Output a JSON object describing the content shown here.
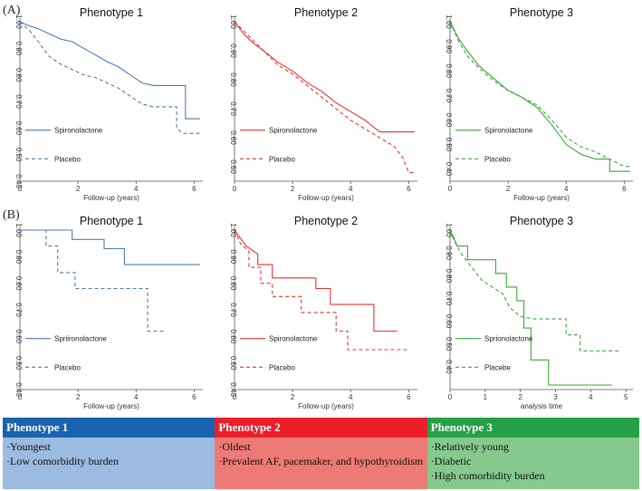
{
  "panels": {
    "a": "(A)",
    "b": "(B)"
  },
  "colors": {
    "blue": "#4e79b4",
    "red": "#e8322c",
    "green": "#3aa635"
  },
  "chart_data": [
    {
      "type": "line",
      "row": "A",
      "title": "Phenotype 1",
      "color": "blue",
      "xlabel": "Follow-up (years)",
      "xlim": [
        0,
        6.3
      ],
      "xticks": [
        0,
        2,
        4,
        6
      ],
      "ylim": [
        0.4,
        1.0
      ],
      "yticks": [
        "0.40",
        "0.50",
        "0.60",
        "0.70",
        "0.80",
        "0.90",
        "1.00"
      ],
      "legend": {
        "treatment": "Spironolactone",
        "control": "Placebo"
      },
      "series": [
        {
          "name": "Spironolactone",
          "style": "solid",
          "points": [
            [
              0,
              1.0
            ],
            [
              0.3,
              0.985
            ],
            [
              0.6,
              0.975
            ],
            [
              1.0,
              0.955
            ],
            [
              1.4,
              0.935
            ],
            [
              1.8,
              0.925
            ],
            [
              2.2,
              0.9
            ],
            [
              2.6,
              0.875
            ],
            [
              3.0,
              0.85
            ],
            [
              3.4,
              0.83
            ],
            [
              3.8,
              0.8
            ],
            [
              4.2,
              0.77
            ],
            [
              4.6,
              0.76
            ],
            [
              5.7,
              0.76
            ],
            [
              5.7,
              0.635
            ],
            [
              6.2,
              0.635
            ]
          ]
        },
        {
          "name": "Placebo",
          "style": "dashed",
          "points": [
            [
              0,
              1.0
            ],
            [
              0.3,
              0.97
            ],
            [
              0.6,
              0.93
            ],
            [
              1.0,
              0.87
            ],
            [
              1.4,
              0.84
            ],
            [
              1.8,
              0.82
            ],
            [
              2.2,
              0.8
            ],
            [
              2.6,
              0.79
            ],
            [
              3.0,
              0.77
            ],
            [
              3.4,
              0.75
            ],
            [
              3.8,
              0.72
            ],
            [
              4.2,
              0.69
            ],
            [
              4.6,
              0.68
            ],
            [
              5.4,
              0.68
            ],
            [
              5.4,
              0.6
            ],
            [
              5.6,
              0.58
            ],
            [
              6.2,
              0.58
            ]
          ]
        }
      ]
    },
    {
      "type": "line",
      "row": "A",
      "title": "Phenotype 2",
      "color": "red",
      "xlabel": "Follow-up (years)",
      "xlim": [
        0,
        6.3
      ],
      "xticks": [
        0,
        2,
        4,
        6
      ],
      "ylim": [
        0.45,
        1.0
      ],
      "yticks": [
        "0.50",
        "0.60",
        "0.70",
        "0.80",
        "0.90",
        "1.00"
      ],
      "legend": {
        "treatment": "Spironolactone",
        "control": "Placebo"
      },
      "series": [
        {
          "name": "Spironolactone",
          "style": "solid",
          "points": [
            [
              0,
              1.0
            ],
            [
              0.3,
              0.96
            ],
            [
              0.6,
              0.93
            ],
            [
              1.0,
              0.9
            ],
            [
              1.5,
              0.86
            ],
            [
              2.0,
              0.83
            ],
            [
              2.5,
              0.79
            ],
            [
              3.0,
              0.76
            ],
            [
              3.5,
              0.72
            ],
            [
              4.0,
              0.69
            ],
            [
              4.5,
              0.66
            ],
            [
              5.0,
              0.62
            ],
            [
              6.2,
              0.62
            ]
          ]
        },
        {
          "name": "Placebo",
          "style": "dashed",
          "points": [
            [
              0,
              1.0
            ],
            [
              0.3,
              0.97
            ],
            [
              0.6,
              0.94
            ],
            [
              1.0,
              0.9
            ],
            [
              1.5,
              0.85
            ],
            [
              2.0,
              0.82
            ],
            [
              2.5,
              0.78
            ],
            [
              3.0,
              0.74
            ],
            [
              3.5,
              0.7
            ],
            [
              4.0,
              0.66
            ],
            [
              4.5,
              0.63
            ],
            [
              5.0,
              0.6
            ],
            [
              5.5,
              0.57
            ],
            [
              5.8,
              0.53
            ],
            [
              6.0,
              0.48
            ],
            [
              6.2,
              0.48
            ]
          ]
        }
      ]
    },
    {
      "type": "line",
      "row": "A",
      "title": "Phenotype 3",
      "color": "green",
      "xlabel": "Follow-up (years)",
      "xlim": [
        0,
        6.3
      ],
      "xticks": [
        0,
        2,
        4,
        6
      ],
      "ylim": [
        0.35,
        1.0
      ],
      "yticks": [
        "0.40",
        "0.50",
        "0.60",
        "0.70",
        "0.80",
        "0.90",
        "1.00"
      ],
      "legend": {
        "treatment": "Spironolactone",
        "control": "Placebo"
      },
      "series": [
        {
          "name": "Spironolactone",
          "style": "solid",
          "points": [
            [
              0,
              1.0
            ],
            [
              0.3,
              0.93
            ],
            [
              0.6,
              0.88
            ],
            [
              1.0,
              0.82
            ],
            [
              1.5,
              0.77
            ],
            [
              2.0,
              0.72
            ],
            [
              2.5,
              0.69
            ],
            [
              3.0,
              0.65
            ],
            [
              3.5,
              0.58
            ],
            [
              4.0,
              0.5
            ],
            [
              4.5,
              0.46
            ],
            [
              5.0,
              0.44
            ],
            [
              5.5,
              0.44
            ],
            [
              5.5,
              0.39
            ],
            [
              6.2,
              0.39
            ]
          ]
        },
        {
          "name": "Placebo",
          "style": "dashed",
          "points": [
            [
              0,
              1.0
            ],
            [
              0.3,
              0.92
            ],
            [
              0.6,
              0.86
            ],
            [
              1.0,
              0.81
            ],
            [
              1.5,
              0.76
            ],
            [
              2.0,
              0.72
            ],
            [
              2.5,
              0.69
            ],
            [
              3.0,
              0.66
            ],
            [
              3.5,
              0.6
            ],
            [
              4.0,
              0.53
            ],
            [
              4.5,
              0.49
            ],
            [
              5.0,
              0.47
            ],
            [
              5.5,
              0.44
            ],
            [
              6.0,
              0.41
            ],
            [
              6.2,
              0.41
            ]
          ]
        }
      ]
    },
    {
      "type": "line",
      "row": "B",
      "title": "Phenotype 1",
      "color": "blue",
      "xlabel": "Follow-up (years)",
      "xlim": [
        0,
        6.3
      ],
      "xticks": [
        0,
        2,
        4,
        6
      ],
      "ylim": [
        0.4,
        1.0
      ],
      "yticks": [
        "0.40",
        "0.50",
        "0.60",
        "0.70",
        "0.80",
        "0.90",
        "1.00"
      ],
      "legend": {
        "treatment": "Spriironolactone",
        "control": "Placebo"
      },
      "series": [
        {
          "name": "Spriironolactone",
          "style": "solid",
          "points": [
            [
              0,
              1.0
            ],
            [
              1.8,
              1.0
            ],
            [
              1.8,
              0.965
            ],
            [
              2.9,
              0.965
            ],
            [
              2.9,
              0.93
            ],
            [
              3.6,
              0.93
            ],
            [
              3.6,
              0.87
            ],
            [
              6.2,
              0.87
            ]
          ]
        },
        {
          "name": "Placebo",
          "style": "dashed",
          "points": [
            [
              0,
              1.0
            ],
            [
              0.9,
              1.0
            ],
            [
              0.9,
              0.94
            ],
            [
              1.3,
              0.94
            ],
            [
              1.3,
              0.84
            ],
            [
              1.9,
              0.84
            ],
            [
              1.9,
              0.78
            ],
            [
              4.4,
              0.78
            ],
            [
              4.4,
              0.62
            ],
            [
              5.0,
              0.62
            ]
          ]
        }
      ]
    },
    {
      "type": "line",
      "row": "B",
      "title": "Phenotype 2",
      "color": "red",
      "xlabel": "Follow-up (years)",
      "xlim": [
        0,
        6.3
      ],
      "xticks": [
        0,
        2,
        4,
        6
      ],
      "ylim": [
        0.4,
        1.0
      ],
      "yticks": [
        "0.40",
        "0.50",
        "0.60",
        "0.70",
        "0.80",
        "0.90",
        "1.00"
      ],
      "legend": {
        "treatment": "Spironolactone",
        "control": "Placebo"
      },
      "series": [
        {
          "name": "Spironolactone",
          "style": "solid",
          "points": [
            [
              0,
              1.0
            ],
            [
              0.2,
              0.97
            ],
            [
              0.4,
              0.94
            ],
            [
              0.8,
              0.91
            ],
            [
              0.8,
              0.87
            ],
            [
              1.3,
              0.87
            ],
            [
              1.3,
              0.82
            ],
            [
              2.8,
              0.82
            ],
            [
              2.8,
              0.78
            ],
            [
              3.3,
              0.78
            ],
            [
              3.3,
              0.72
            ],
            [
              4.8,
              0.72
            ],
            [
              4.8,
              0.62
            ],
            [
              5.6,
              0.62
            ]
          ]
        },
        {
          "name": "Placebo",
          "style": "dashed",
          "points": [
            [
              0,
              1.0
            ],
            [
              0.2,
              0.95
            ],
            [
              0.5,
              0.92
            ],
            [
              0.5,
              0.86
            ],
            [
              0.9,
              0.86
            ],
            [
              0.9,
              0.8
            ],
            [
              1.3,
              0.8
            ],
            [
              1.3,
              0.75
            ],
            [
              2.3,
              0.75
            ],
            [
              2.3,
              0.69
            ],
            [
              3.5,
              0.69
            ],
            [
              3.5,
              0.62
            ],
            [
              3.9,
              0.62
            ],
            [
              3.9,
              0.55
            ],
            [
              6.0,
              0.55
            ]
          ]
        }
      ]
    },
    {
      "type": "line",
      "row": "B",
      "title": "Phenotype 3",
      "color": "green",
      "xlabel": "analysis time",
      "xlim": [
        0,
        5.2
      ],
      "xticks": [
        0,
        1,
        2,
        3,
        4,
        5
      ],
      "ylim": [
        0.3,
        1.0
      ],
      "yticks": [
        "0.40",
        "0.50",
        "0.60",
        "0.70",
        "0.80",
        "0.90",
        "1.00"
      ],
      "legend": {
        "treatment": "Sprionolactone",
        "control": "Placebe"
      },
      "series": [
        {
          "name": "Sprionolactone",
          "style": "solid",
          "points": [
            [
              0,
              1.0
            ],
            [
              0.1,
              0.97
            ],
            [
              0.2,
              0.93
            ],
            [
              0.5,
              0.93
            ],
            [
              0.5,
              0.87
            ],
            [
              1.3,
              0.87
            ],
            [
              1.3,
              0.81
            ],
            [
              1.6,
              0.81
            ],
            [
              1.6,
              0.75
            ],
            [
              1.9,
              0.75
            ],
            [
              1.9,
              0.69
            ],
            [
              2.1,
              0.69
            ],
            [
              2.1,
              0.57
            ],
            [
              2.3,
              0.57
            ],
            [
              2.3,
              0.43
            ],
            [
              2.8,
              0.43
            ],
            [
              2.8,
              0.32
            ],
            [
              4.6,
              0.32
            ]
          ]
        },
        {
          "name": "Placebe",
          "style": "dashed",
          "points": [
            [
              0,
              1.0
            ],
            [
              0.1,
              0.96
            ],
            [
              0.3,
              0.9
            ],
            [
              0.6,
              0.84
            ],
            [
              0.9,
              0.78
            ],
            [
              1.2,
              0.75
            ],
            [
              1.5,
              0.72
            ],
            [
              1.7,
              0.66
            ],
            [
              2.0,
              0.62
            ],
            [
              2.4,
              0.61
            ],
            [
              3.3,
              0.61
            ],
            [
              3.3,
              0.54
            ],
            [
              3.7,
              0.54
            ],
            [
              3.7,
              0.47
            ],
            [
              4.8,
              0.47
            ]
          ]
        }
      ]
    }
  ],
  "phenotypes": [
    {
      "title": "Phenotype 1",
      "head_color": "#1a63b0",
      "body_color": "#9bbbe0",
      "items": [
        "·Youngest",
        "·Low comorbidity burden"
      ]
    },
    {
      "title": "Phenotype 2",
      "head_color": "#ec1e2a",
      "body_color": "#ee7a75",
      "items": [
        "·Oldest",
        "·Prevalent AF, pacemaker, and hypothyroidism"
      ]
    },
    {
      "title": "Phenotype 3",
      "head_color": "#24a048",
      "body_color": "#85c98c",
      "items": [
        "·Relatively young",
        "·Diabetic",
        "·High comorbidity burden"
      ]
    }
  ]
}
